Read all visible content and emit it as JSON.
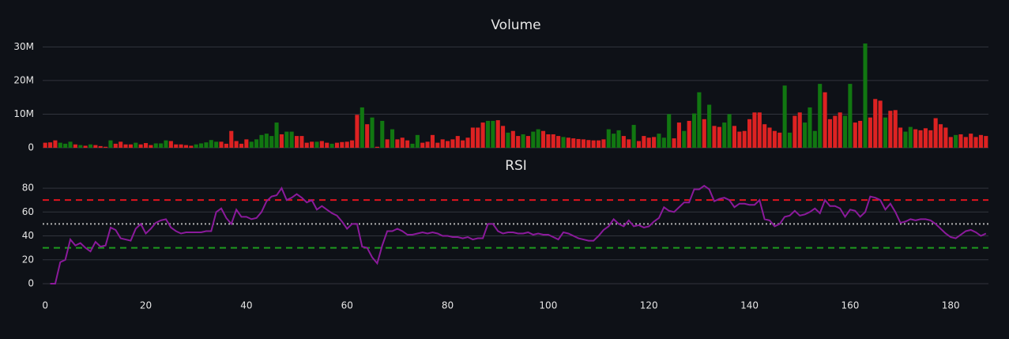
{
  "chart_data": [
    {
      "type": "bar",
      "title": "Volume",
      "x": [
        0,
        1,
        2,
        3,
        4,
        5,
        6,
        7,
        8,
        9,
        10,
        11,
        12,
        13,
        14,
        15,
        16,
        17,
        18,
        19,
        20,
        21,
        22,
        23,
        24,
        25,
        26,
        27,
        28,
        29,
        30,
        31,
        32,
        33,
        34,
        35,
        36,
        37,
        38,
        39,
        40,
        41,
        42,
        43,
        44,
        45,
        46,
        47,
        48,
        49,
        50,
        51,
        52,
        53,
        54,
        55,
        56,
        57,
        58,
        59,
        60,
        61,
        62,
        63,
        64,
        65,
        66,
        67,
        68,
        69,
        70,
        71,
        72,
        73,
        74,
        75,
        76,
        77,
        78,
        79,
        80,
        81,
        82,
        83,
        84,
        85,
        86,
        87,
        88,
        89,
        90,
        91,
        92,
        93,
        94,
        95,
        96,
        97,
        98,
        99,
        100,
        101,
        102,
        103,
        104,
        105,
        106,
        107,
        108,
        109,
        110,
        111,
        112,
        113,
        114,
        115,
        116,
        117,
        118,
        119,
        120,
        121,
        122,
        123,
        124,
        125,
        126,
        127,
        128,
        129,
        130,
        131,
        132,
        133,
        134,
        135,
        136,
        137,
        138,
        139,
        140,
        141,
        142,
        143,
        144,
        145,
        146,
        147,
        148,
        149,
        150,
        151,
        152,
        153,
        154,
        155,
        156,
        157,
        158,
        159,
        160,
        161,
        162,
        163,
        164,
        165,
        166,
        167,
        168,
        169,
        170,
        171,
        172,
        173,
        174,
        175,
        176,
        177,
        178,
        179,
        180,
        181,
        182,
        183,
        184,
        185,
        186,
        187
      ],
      "values": [
        1500000.0,
        1600000.0,
        2200000.0,
        1500000.0,
        1200000.0,
        1800000.0,
        1000000.0,
        800000.0,
        600000.0,
        1000000.0,
        800000.0,
        500000.0,
        300000.0,
        2200000.0,
        1200000.0,
        1800000.0,
        1000000.0,
        1000000.0,
        1500000.0,
        1000000.0,
        1400000.0,
        800000.0,
        1300000.0,
        1300000.0,
        2200000.0,
        2000000.0,
        1000000.0,
        1000000.0,
        800000.0,
        600000.0,
        1000000.0,
        1300000.0,
        1600000.0,
        2300000.0,
        1800000.0,
        1800000.0,
        1200000.0,
        5000000.0,
        2000000.0,
        1200000.0,
        2500000.0,
        1800000.0,
        2500000.0,
        3800000.0,
        4200000.0,
        3500000.0,
        7500000.0,
        4000000.0,
        4800000.0,
        4800000.0,
        3500000.0,
        3500000.0,
        1500000.0,
        1800000.0,
        1800000.0,
        2000000.0,
        1500000.0,
        1200000.0,
        1500000.0,
        1700000.0,
        1800000.0,
        2200000.0,
        9800000.0,
        12000000.0,
        7000000.0,
        9000000.0,
        300000.0,
        8000000.0,
        2500000.0,
        5500000.0,
        2500000.0,
        3000000.0,
        2200000.0,
        1200000.0,
        3800000.0,
        1500000.0,
        1800000.0,
        3800000.0,
        1500000.0,
        2500000.0,
        2000000.0,
        2500000.0,
        3500000.0,
        2200000.0,
        3000000.0,
        6000000.0,
        6000000.0,
        7500000.0,
        8000000.0,
        8000000.0,
        8200000.0,
        6500000.0,
        4500000.0,
        5000000.0,
        3500000.0,
        4000000.0,
        3500000.0,
        4800000.0,
        5500000.0,
        5000000.0,
        4000000.0,
        4000000.0,
        3500000.0,
        3200000.0,
        3000000.0,
        2800000.0,
        2600000.0,
        2500000.0,
        2300000.0,
        2200000.0,
        2200000.0,
        2500000.0,
        5500000.0,
        4200000.0,
        5200000.0,
        3500000.0,
        2500000.0,
        6800000.0,
        2000000.0,
        3500000.0,
        3000000.0,
        3200000.0,
        4200000.0,
        3000000.0,
        10000000.0,
        2800000.0,
        7500000.0,
        5000000.0,
        8000000.0,
        10200000.0,
        16500000.0,
        8500000.0,
        12800000.0,
        6500000.0,
        6200000.0,
        7500000.0,
        10000000.0,
        6500000.0,
        4800000.0,
        5000000.0,
        8500000.0,
        10500000.0,
        10500000.0,
        7000000.0,
        6000000.0,
        5000000.0,
        4500000.0,
        18500000.0,
        4500000.0,
        9500000.0,
        10500000.0,
        7500000.0,
        12000000.0,
        5000000.0,
        19000000.0,
        16500000.0,
        8500000.0,
        9500000.0,
        10500000.0,
        9500000.0,
        19000000.0,
        7500000.0,
        8000000.0,
        31000000.0,
        9000000.0,
        14500000.0,
        14000000.0,
        9000000.0,
        11000000.0,
        11200000.0,
        6000000.0,
        4800000.0,
        6200000.0,
        5500000.0,
        5200000.0,
        5800000.0,
        5200000.0,
        8800000.0,
        7000000.0,
        6000000.0,
        3200000.0,
        3800000.0,
        4000000.0,
        3200000.0,
        4200000.0,
        3200000.0,
        3800000.0,
        3500000.0
      ],
      "colors": [
        "#d22",
        "#d22",
        "#d22",
        "#171",
        "#171",
        "#171",
        "#d22",
        "#171",
        "#d22",
        "#171",
        "#d22",
        "#d22",
        "#d22",
        "#171",
        "#d22",
        "#d22",
        "#d22",
        "#d22",
        "#171",
        "#d22",
        "#d22",
        "#d22",
        "#171",
        "#171",
        "#171",
        "#d22",
        "#d22",
        "#d22",
        "#d22",
        "#d22",
        "#171",
        "#171",
        "#171",
        "#171",
        "#171",
        "#d22",
        "#d22",
        "#d22",
        "#d22",
        "#d22",
        "#d22",
        "#171",
        "#171",
        "#171",
        "#171",
        "#171",
        "#171",
        "#d22",
        "#171",
        "#171",
        "#d22",
        "#d22",
        "#d22",
        "#d22",
        "#171",
        "#d22",
        "#d22",
        "#171",
        "#d22",
        "#d22",
        "#d22",
        "#d22",
        "#d22",
        "#171",
        "#d22",
        "#171",
        "#d22",
        "#171",
        "#d22",
        "#171",
        "#d22",
        "#d22",
        "#d22",
        "#171",
        "#171",
        "#d22",
        "#d22",
        "#d22",
        "#d22",
        "#d22",
        "#d22",
        "#d22",
        "#d22",
        "#d22",
        "#d22",
        "#d22",
        "#d22",
        "#d22",
        "#171",
        "#171",
        "#d22",
        "#d22",
        "#171",
        "#d22",
        "#d22",
        "#171",
        "#d22",
        "#171",
        "#171",
        "#d22",
        "#d22",
        "#d22",
        "#d22",
        "#171",
        "#d22",
        "#d22",
        "#d22",
        "#d22",
        "#d22",
        "#d22",
        "#d22",
        "#d22",
        "#171",
        "#171",
        "#171",
        "#d22",
        "#d22",
        "#171",
        "#d22",
        "#d22",
        "#d22",
        "#d22",
        "#171",
        "#171",
        "#171",
        "#d22",
        "#d22",
        "#171",
        "#d22",
        "#171",
        "#171",
        "#d22",
        "#171",
        "#d22",
        "#d22",
        "#171",
        "#171",
        "#d22",
        "#d22",
        "#d22",
        "#d22",
        "#d22",
        "#d22",
        "#d22",
        "#d22",
        "#d22",
        "#d22",
        "#171",
        "#171",
        "#d22",
        "#d22",
        "#171",
        "#171",
        "#171",
        "#171",
        "#d22",
        "#d22",
        "#d22",
        "#d22",
        "#171",
        "#171",
        "#d22",
        "#d22",
        "#171",
        "#d22",
        "#d22",
        "#d22",
        "#171",
        "#d22",
        "#d22",
        "#d22",
        "#171",
        "#171",
        "#d22",
        "#d22",
        "#d22",
        "#d22",
        "#d22",
        "#d22",
        "#d22",
        "#d22",
        "#171",
        "#d22",
        "#d22",
        "#d22",
        "#d22",
        "#d22",
        "#d22"
      ],
      "xlim": [
        -0.5,
        187.5
      ],
      "ylim": [
        0,
        32000000
      ],
      "yticks": [
        0,
        {
          "value": 10000000,
          "label": "10M"
        },
        {
          "value": 20000000,
          "label": "20M"
        },
        {
          "value": 30000000,
          "label": "30M"
        }
      ],
      "grid": true
    },
    {
      "type": "line",
      "title": "RSI",
      "color": "#8b1a9b",
      "x": [
        0,
        1,
        2,
        3,
        4,
        5,
        6,
        7,
        8,
        9,
        10,
        11,
        12,
        13,
        14,
        15,
        16,
        17,
        18,
        19,
        20,
        21,
        22,
        23,
        24,
        25,
        26,
        27,
        28,
        29,
        30,
        31,
        32,
        33,
        34,
        35,
        36,
        37,
        38,
        39,
        40,
        41,
        42,
        43,
        44,
        45,
        46,
        47,
        48,
        49,
        50,
        51,
        52,
        53,
        54,
        55,
        56,
        57,
        58,
        59,
        60,
        61,
        62,
        63,
        64,
        65,
        66,
        67,
        68,
        69,
        70,
        71,
        72,
        73,
        74,
        75,
        76,
        77,
        78,
        79,
        80,
        81,
        82,
        83,
        84,
        85,
        86,
        87,
        88,
        89,
        90,
        91,
        92,
        93,
        94,
        95,
        96,
        97,
        98,
        99,
        100,
        101,
        102,
        103,
        104,
        105,
        106,
        107,
        108,
        109,
        110,
        111,
        112,
        113,
        114,
        115,
        116,
        117,
        118,
        119,
        120,
        121,
        122,
        123,
        124,
        125,
        126,
        127,
        128,
        129,
        130,
        131,
        132,
        133,
        134,
        135,
        136,
        137,
        138,
        139,
        140,
        141,
        142,
        143,
        144,
        145,
        146,
        147,
        148,
        149,
        150,
        151,
        152,
        153,
        154,
        155,
        156,
        157,
        158,
        159,
        160,
        161,
        162,
        163,
        164,
        165,
        166,
        167,
        168,
        169,
        170,
        171,
        172,
        173,
        174,
        175,
        176,
        177,
        178,
        179,
        180,
        181,
        182,
        183,
        184,
        185,
        186,
        187
      ],
      "values": [
        null,
        0,
        0,
        18,
        20,
        37,
        32,
        34,
        30,
        27,
        35,
        31,
        32,
        47,
        45,
        38,
        37,
        36,
        46,
        50,
        42,
        46,
        51,
        53,
        54,
        47,
        44,
        42,
        43,
        43,
        43,
        43,
        44,
        44,
        60,
        63,
        55,
        50,
        62,
        56,
        56,
        54,
        55,
        60,
        69,
        73,
        74,
        80,
        70,
        72,
        75,
        72,
        68,
        70,
        62,
        65,
        62,
        59,
        57,
        52,
        46,
        50,
        50,
        31,
        30,
        22,
        17,
        32,
        44,
        44,
        46,
        44,
        41,
        41,
        42,
        43,
        42,
        43,
        42,
        40,
        40,
        39,
        39,
        38,
        39,
        37,
        38,
        38,
        50,
        50,
        44,
        42,
        43,
        43,
        42,
        42,
        43,
        41,
        42,
        41,
        41,
        39,
        37,
        43,
        42,
        40,
        38,
        37,
        36,
        36,
        40,
        45,
        48,
        54,
        50,
        48,
        53,
        48,
        49,
        47,
        48,
        52,
        55,
        64,
        61,
        60,
        64,
        68,
        68,
        79,
        79,
        82,
        79,
        69,
        71,
        72,
        70,
        64,
        67,
        67,
        66,
        66,
        70,
        54,
        53,
        48,
        50,
        56,
        57,
        61,
        57,
        58,
        60,
        63,
        59,
        70,
        65,
        65,
        63,
        56,
        62,
        61,
        56,
        60,
        73,
        72,
        70,
        62,
        67,
        60,
        51,
        52,
        54,
        53,
        54,
        54,
        53,
        50,
        46,
        42,
        39,
        38,
        41,
        44,
        45,
        43,
        40,
        42
      ],
      "hlines": [
        {
          "value": 70,
          "color": "#e0141e",
          "dash": "dashed"
        },
        {
          "value": 50,
          "color": "#b0b0b0",
          "dash": "dotted"
        },
        {
          "value": 30,
          "color": "#1e9a1e",
          "dash": "dashed"
        }
      ],
      "xlim": [
        -0.5,
        187.5
      ],
      "ylim": [
        -2,
        86
      ],
      "xticks": [
        0,
        20,
        40,
        60,
        80,
        100,
        120,
        140,
        160,
        180
      ],
      "yticks": [
        0,
        20,
        40,
        60,
        80
      ],
      "grid": true
    }
  ]
}
